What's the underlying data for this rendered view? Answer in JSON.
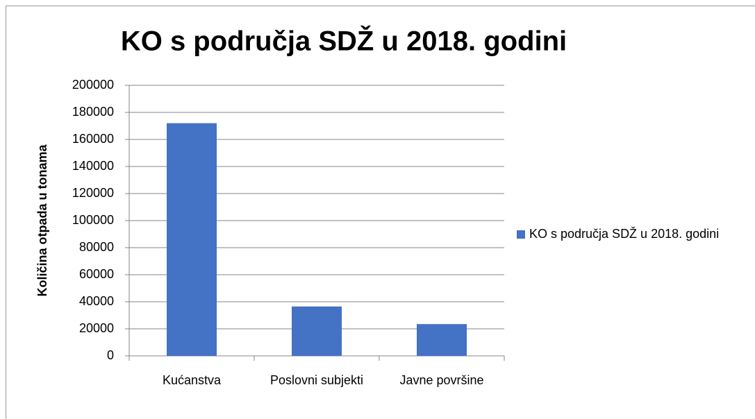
{
  "chart_data": {
    "type": "bar",
    "title": "KO s područja SDŽ u 2018. godini",
    "ylabel": "Količina otpada u tonama",
    "categories": [
      "Kućanstva",
      "Poslovni subjekti",
      "Javne površine"
    ],
    "series": [
      {
        "name": "KO s područja SDŽ u 2018. godini",
        "color": "#4472c4",
        "values": [
          172000,
          36500,
          23500
        ]
      }
    ],
    "ylim": [
      0,
      200000
    ],
    "yticks": [
      0,
      20000,
      40000,
      60000,
      80000,
      100000,
      120000,
      140000,
      160000,
      180000,
      200000
    ],
    "grid": true,
    "legend": "right"
  }
}
